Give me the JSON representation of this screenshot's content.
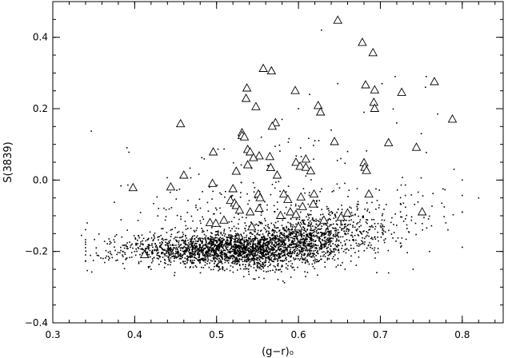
{
  "chart_data": {
    "type": "scatter",
    "xlabel": "(g−r)₀",
    "ylabel": "S(3839)",
    "xlim": [
      0.3,
      0.85
    ],
    "ylim": [
      -0.4,
      0.5
    ],
    "xticks": [
      0.3,
      0.4,
      0.5,
      0.6,
      0.7,
      0.8
    ],
    "yticks": [
      -0.4,
      -0.2,
      0.0,
      0.2,
      0.4
    ],
    "xtick_labels": [
      "0.3",
      "0.4",
      "0.5",
      "0.6",
      "0.7",
      "0.8"
    ],
    "ytick_labels": [
      "−0.4",
      "−0.2",
      "0.0",
      "0.2",
      "0.4"
    ],
    "grid": false,
    "series": [
      {
        "marker": "dot",
        "color": "#000000",
        "values": [
          [
            0.335,
            -0.155
          ],
          [
            0.347,
            0.137
          ],
          [
            0.393,
            0.078
          ],
          [
            0.42,
            -0.25
          ],
          [
            0.353,
            -0.19
          ],
          [
            0.37,
            -0.2
          ],
          [
            0.385,
            -0.21
          ],
          [
            0.4,
            -0.2
          ],
          [
            0.628,
            0.42
          ],
          [
            0.648,
            0.27
          ],
          [
            0.702,
            0.27
          ],
          [
            0.718,
            0.29
          ],
          [
            0.756,
            0.29
          ],
          [
            0.755,
            0.26
          ],
          [
            0.77,
            0.185
          ],
          [
            0.79,
            0.165
          ],
          [
            0.79,
            0.03
          ],
          [
            0.8,
            0.0
          ],
          [
            0.82,
            -0.05
          ],
          [
            0.78,
            -0.12
          ],
          [
            0.74,
            -0.25
          ],
          [
            0.71,
            -0.26
          ],
          [
            0.76,
            -0.2
          ],
          [
            0.8,
            -0.09
          ],
          [
            0.75,
            0.13
          ],
          [
            0.72,
            0.16
          ],
          [
            0.68,
            0.19
          ],
          [
            0.64,
            0.14
          ],
          [
            0.6,
            0.2
          ],
          [
            0.58,
            0.17
          ],
          [
            0.62,
            0.11
          ],
          [
            0.66,
            0.08
          ]
        ]
      },
      {
        "marker": "triangle",
        "color": "#000000",
        "values": [
          [
            0.648,
            0.447
          ],
          [
            0.678,
            0.385
          ],
          [
            0.691,
            0.356
          ],
          [
            0.557,
            0.312
          ],
          [
            0.567,
            0.305
          ],
          [
            0.766,
            0.275
          ],
          [
            0.682,
            0.266
          ],
          [
            0.537,
            0.257
          ],
          [
            0.693,
            0.252
          ],
          [
            0.596,
            0.25
          ],
          [
            0.726,
            0.245
          ],
          [
            0.536,
            0.228
          ],
          [
            0.692,
            0.217
          ],
          [
            0.548,
            0.205
          ],
          [
            0.624,
            0.208
          ],
          [
            0.693,
            0.2
          ],
          [
            0.627,
            0.19
          ],
          [
            0.788,
            0.17
          ],
          [
            0.456,
            0.157
          ],
          [
            0.572,
            0.16
          ],
          [
            0.568,
            0.15
          ],
          [
            0.531,
            0.132
          ],
          [
            0.531,
            0.124
          ],
          [
            0.534,
            0.12
          ],
          [
            0.644,
            0.107
          ],
          [
            0.71,
            0.104
          ],
          [
            0.538,
            0.085
          ],
          [
            0.541,
            0.078
          ],
          [
            0.496,
            0.078
          ],
          [
            0.744,
            0.091
          ],
          [
            0.552,
            0.067
          ],
          [
            0.545,
            0.062
          ],
          [
            0.565,
            0.065
          ],
          [
            0.609,
            0.058
          ],
          [
            0.68,
            0.048
          ],
          [
            0.597,
            0.049
          ],
          [
            0.538,
            0.042
          ],
          [
            0.602,
            0.038
          ],
          [
            0.609,
            0.035
          ],
          [
            0.566,
            0.034
          ],
          [
            0.681,
            0.035
          ],
          [
            0.683,
            0.026
          ],
          [
            0.615,
            0.025
          ],
          [
            0.524,
            0.024
          ],
          [
            0.46,
            0.013
          ],
          [
            0.574,
            0.013
          ],
          [
            0.495,
            -0.01
          ],
          [
            0.398,
            -0.022
          ],
          [
            0.444,
            -0.02
          ],
          [
            0.52,
            -0.025
          ],
          [
            0.551,
            -0.04
          ],
          [
            0.619,
            -0.04
          ],
          [
            0.582,
            -0.04
          ],
          [
            0.686,
            -0.04
          ],
          [
            0.553,
            -0.05
          ],
          [
            0.603,
            -0.048
          ],
          [
            0.517,
            -0.058
          ],
          [
            0.587,
            -0.055
          ],
          [
            0.522,
            -0.065
          ],
          [
            0.524,
            -0.072
          ],
          [
            0.618,
            -0.068
          ],
          [
            0.605,
            -0.075
          ],
          [
            0.552,
            -0.08
          ],
          [
            0.528,
            -0.085
          ],
          [
            0.541,
            -0.09
          ],
          [
            0.59,
            -0.09
          ],
          [
            0.578,
            -0.1
          ],
          [
            0.597,
            -0.097
          ],
          [
            0.66,
            -0.093
          ],
          [
            0.751,
            -0.09
          ],
          [
            0.652,
            -0.105
          ],
          [
            0.492,
            -0.12
          ],
          [
            0.499,
            -0.122
          ],
          [
            0.509,
            -0.113
          ],
          [
            0.631,
            -0.113
          ],
          [
            0.543,
            -0.132
          ],
          [
            0.6,
            -0.132
          ],
          [
            0.412,
            -0.21
          ]
        ]
      }
    ]
  }
}
